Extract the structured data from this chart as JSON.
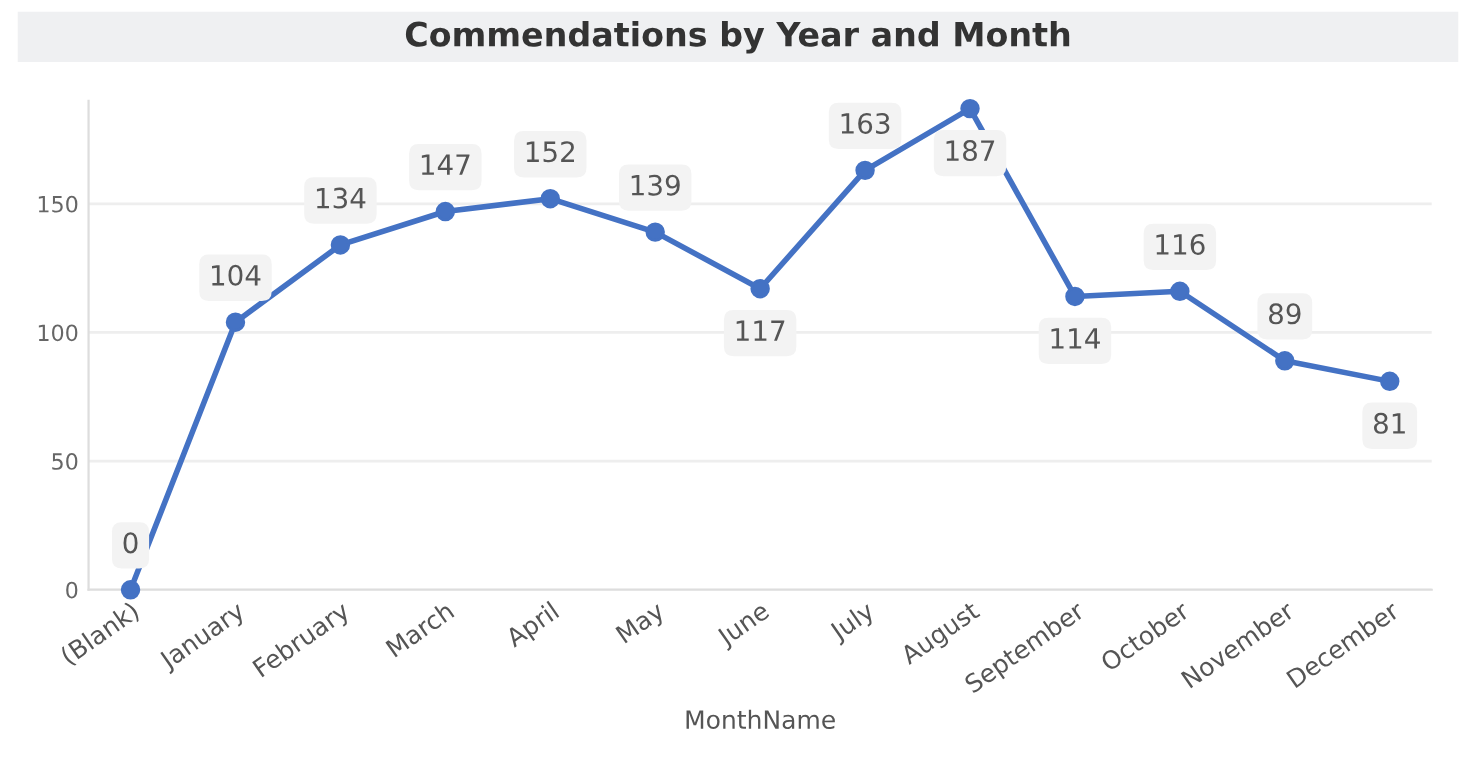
{
  "chart_data": {
    "type": "line",
    "title": "Commendations by Year and Month",
    "xlabel": "MonthName",
    "categories": [
      "(Blank)",
      "January",
      "February",
      "March",
      "April",
      "May",
      "June",
      "July",
      "August",
      "September",
      "October",
      "November",
      "December"
    ],
    "series": [
      {
        "color": "#4472c4",
        "values": [
          0,
          104,
          134,
          147,
          152,
          139,
          117,
          163,
          187,
          114,
          116,
          89,
          81
        ]
      }
    ],
    "ylim": [
      0,
      190
    ],
    "yticks": [
      0,
      50,
      100,
      150
    ],
    "grid": "y",
    "marker": "circle",
    "line_style": "solid",
    "data_labels": true
  }
}
